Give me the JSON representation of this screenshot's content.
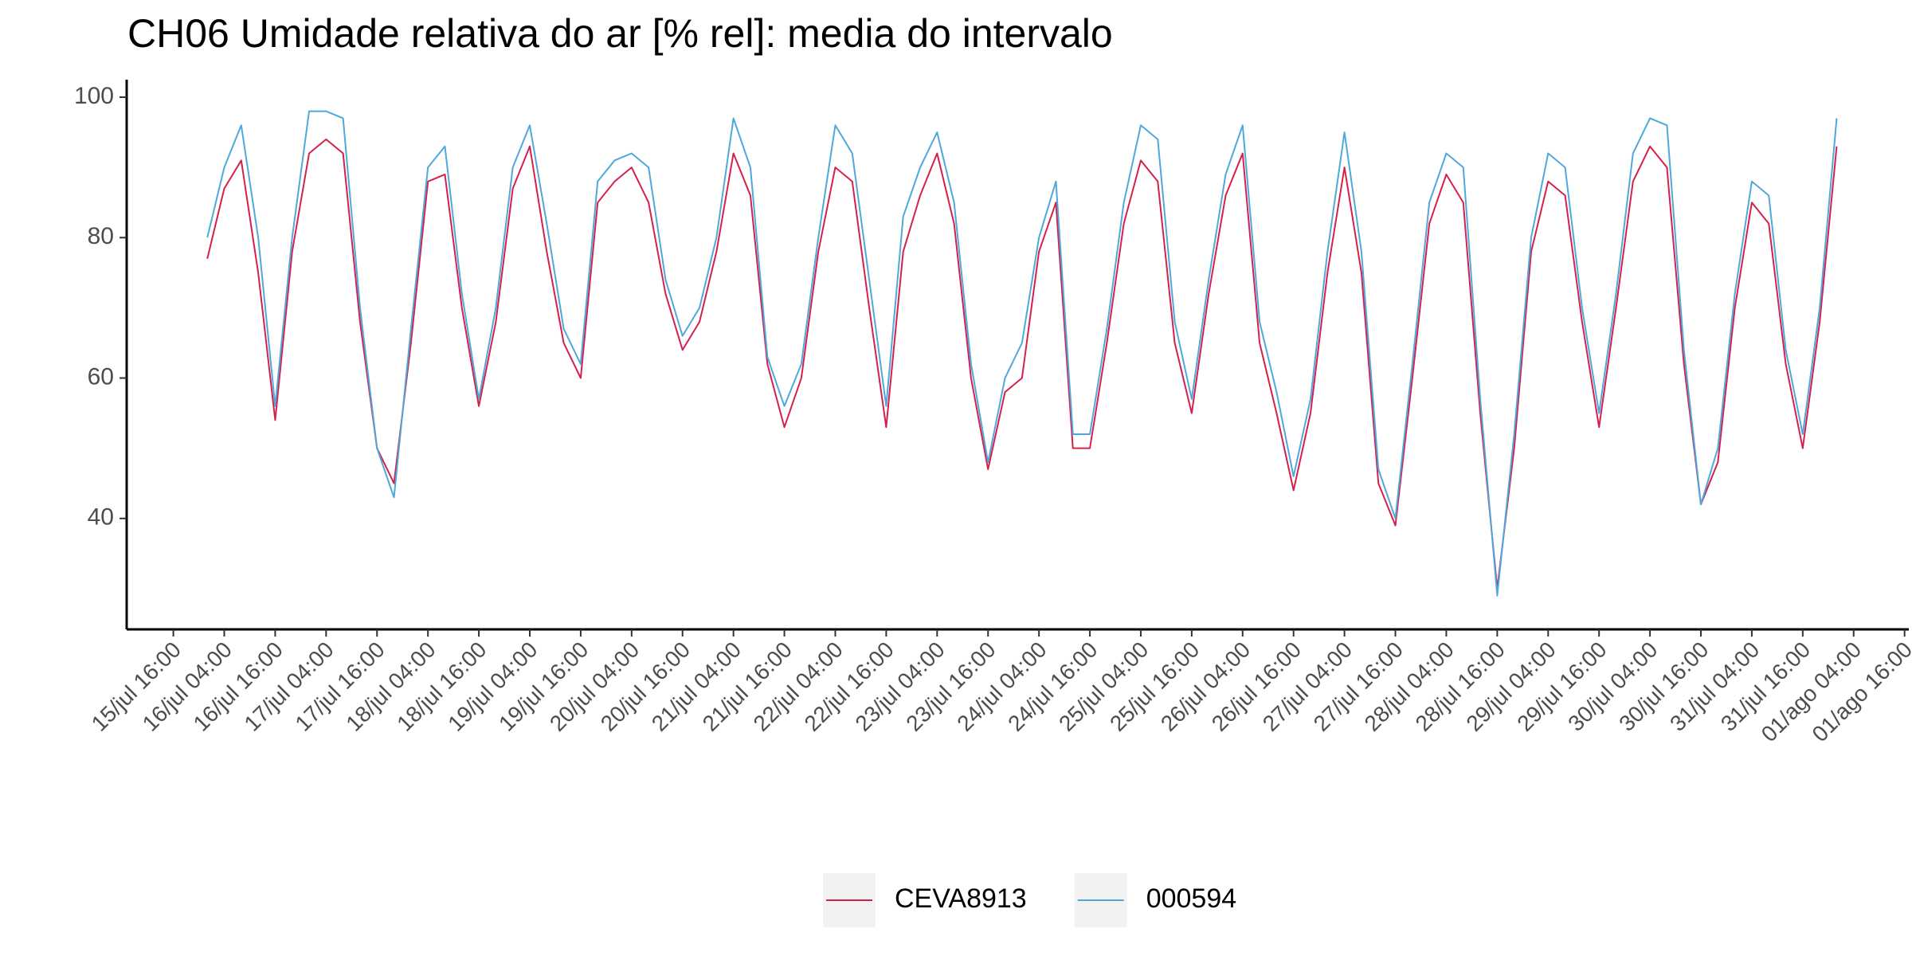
{
  "chart_data": {
    "type": "line",
    "title": "CH06 Umidade relativa do ar [% rel]: media do intervalo",
    "x": [
      "16/jul 00:00",
      "16/jul 04:00",
      "16/jul 08:00",
      "16/jul 12:00",
      "16/jul 16:00",
      "16/jul 20:00",
      "17/jul 00:00",
      "17/jul 04:00",
      "17/jul 08:00",
      "17/jul 12:00",
      "17/jul 16:00",
      "17/jul 20:00",
      "18/jul 00:00",
      "18/jul 04:00",
      "18/jul 08:00",
      "18/jul 12:00",
      "18/jul 16:00",
      "18/jul 20:00",
      "19/jul 00:00",
      "19/jul 04:00",
      "19/jul 08:00",
      "19/jul 12:00",
      "19/jul 16:00",
      "19/jul 20:00",
      "20/jul 00:00",
      "20/jul 04:00",
      "20/jul 08:00",
      "20/jul 12:00",
      "20/jul 16:00",
      "20/jul 20:00",
      "21/jul 00:00",
      "21/jul 04:00",
      "21/jul 08:00",
      "21/jul 12:00",
      "21/jul 16:00",
      "21/jul 20:00",
      "22/jul 00:00",
      "22/jul 04:00",
      "22/jul 08:00",
      "22/jul 12:00",
      "22/jul 16:00",
      "22/jul 20:00",
      "23/jul 00:00",
      "23/jul 04:00",
      "23/jul 08:00",
      "23/jul 12:00",
      "23/jul 16:00",
      "23/jul 20:00",
      "24/jul 00:00",
      "24/jul 04:00",
      "24/jul 08:00",
      "24/jul 12:00",
      "24/jul 16:00",
      "24/jul 20:00",
      "25/jul 00:00",
      "25/jul 04:00",
      "25/jul 08:00",
      "25/jul 12:00",
      "25/jul 16:00",
      "25/jul 20:00",
      "26/jul 00:00",
      "26/jul 04:00",
      "26/jul 08:00",
      "26/jul 12:00",
      "26/jul 16:00",
      "26/jul 20:00",
      "27/jul 00:00",
      "27/jul 04:00",
      "27/jul 08:00",
      "27/jul 12:00",
      "27/jul 16:00",
      "27/jul 20:00",
      "28/jul 00:00",
      "28/jul 04:00",
      "28/jul 08:00",
      "28/jul 12:00",
      "28/jul 16:00",
      "28/jul 20:00",
      "29/jul 00:00",
      "29/jul 04:00",
      "29/jul 08:00",
      "29/jul 12:00",
      "29/jul 16:00",
      "29/jul 20:00",
      "30/jul 00:00",
      "30/jul 04:00",
      "30/jul 08:00",
      "30/jul 12:00",
      "30/jul 16:00",
      "30/jul 20:00",
      "31/jul 00:00",
      "31/jul 04:00",
      "31/jul 08:00",
      "31/jul 12:00",
      "31/jul 16:00",
      "31/jul 20:00",
      "01/ago 00:00"
    ],
    "series": [
      {
        "name": "CEVA8913",
        "color": "#d6204c",
        "values": [
          77,
          87,
          91,
          75,
          54,
          78,
          92,
          94,
          92,
          68,
          50,
          45,
          65,
          88,
          89,
          70,
          56,
          68,
          87,
          93,
          78,
          65,
          60,
          85,
          88,
          90,
          85,
          72,
          64,
          68,
          78,
          92,
          86,
          62,
          53,
          60,
          78,
          90,
          88,
          70,
          53,
          78,
          86,
          92,
          82,
          60,
          47,
          58,
          60,
          78,
          85,
          50,
          50,
          65,
          82,
          91,
          88,
          65,
          55,
          72,
          86,
          92,
          65,
          55,
          44,
          55,
          75,
          90,
          75,
          45,
          39,
          60,
          82,
          89,
          85,
          55,
          30,
          50,
          78,
          88,
          86,
          68,
          53,
          70,
          88,
          93,
          90,
          62,
          42,
          48,
          70,
          85,
          82,
          62,
          50,
          68,
          93
        ]
      },
      {
        "name": "000594",
        "color": "#4fa8dc",
        "values": [
          80,
          90,
          96,
          80,
          56,
          80,
          98,
          98,
          97,
          70,
          50,
          43,
          67,
          90,
          93,
          72,
          57,
          70,
          90,
          96,
          82,
          67,
          62,
          88,
          91,
          92,
          90,
          74,
          66,
          70,
          80,
          97,
          90,
          63,
          56,
          62,
          80,
          96,
          92,
          74,
          56,
          83,
          90,
          95,
          85,
          62,
          48,
          60,
          65,
          80,
          88,
          52,
          52,
          67,
          85,
          96,
          94,
          68,
          57,
          74,
          89,
          96,
          68,
          58,
          46,
          57,
          78,
          95,
          78,
          47,
          40,
          62,
          85,
          92,
          90,
          57,
          29,
          52,
          80,
          92,
          90,
          70,
          55,
          72,
          92,
          97,
          96,
          64,
          42,
          50,
          72,
          88,
          86,
          64,
          52,
          70,
          97
        ]
      }
    ],
    "xlim": [
      "15/jul 05:00",
      "01/ago 17:00"
    ],
    "xticks": [
      "15/jul 16:00",
      "16/jul 04:00",
      "16/jul 16:00",
      "17/jul 04:00",
      "17/jul 16:00",
      "18/jul 04:00",
      "18/jul 16:00",
      "19/jul 04:00",
      "19/jul 16:00",
      "20/jul 04:00",
      "20/jul 16:00",
      "21/jul 04:00",
      "21/jul 16:00",
      "22/jul 04:00",
      "22/jul 16:00",
      "23/jul 04:00",
      "23/jul 16:00",
      "24/jul 04:00",
      "24/jul 16:00",
      "25/jul 04:00",
      "25/jul 16:00",
      "26/jul 04:00",
      "26/jul 16:00",
      "27/jul 04:00",
      "27/jul 16:00",
      "28/jul 04:00",
      "28/jul 16:00",
      "29/jul 04:00",
      "29/jul 16:00",
      "30/jul 04:00",
      "30/jul 16:00",
      "31/jul 04:00",
      "31/jul 16:00",
      "01/ago 04:00",
      "01/ago 16:00"
    ],
    "ylim": [
      24.2,
      102.5
    ],
    "yticks": [
      40,
      60,
      80,
      100
    ],
    "grid": false,
    "legend": "bottom"
  }
}
